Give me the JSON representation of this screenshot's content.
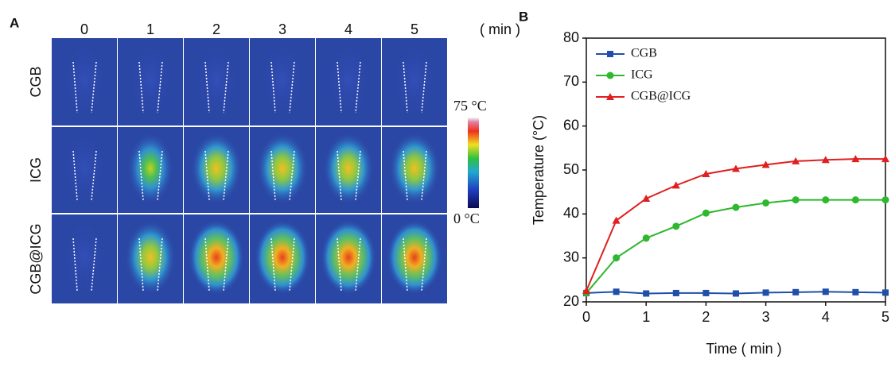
{
  "panel_a": {
    "label": "A",
    "columns": [
      "0",
      "1",
      "2",
      "3",
      "4",
      "5"
    ],
    "unit": "( min )",
    "rows": [
      "CGB",
      "ICG",
      "CGB@ICG"
    ],
    "colorbar": {
      "max": "75 °C",
      "min": "0 °C"
    }
  },
  "chart_data": {
    "type": "line",
    "panel_label": "B",
    "x_label": "Time ( min )",
    "y_label": "Temperature (°C)",
    "x": [
      0,
      0.5,
      1,
      1.5,
      2,
      2.5,
      3,
      3.5,
      4,
      4.5,
      5
    ],
    "series": [
      {
        "name": "CGB",
        "color": "#1f4fa8",
        "marker": "square",
        "values": [
          22,
          22.3,
          21.9,
          22,
          22,
          21.9,
          22.1,
          22.2,
          22.3,
          22.2,
          22.1
        ]
      },
      {
        "name": "ICG",
        "color": "#2db82d",
        "marker": "circle",
        "values": [
          22,
          30,
          34.5,
          37.2,
          40.2,
          41.5,
          42.5,
          43.2,
          43.2,
          43.2,
          43.2
        ]
      },
      {
        "name": "CGB@ICG",
        "color": "#e01f1f",
        "marker": "triangle",
        "values": [
          22.5,
          38.5,
          43.5,
          46.5,
          49.1,
          50.3,
          51.2,
          52,
          52.3,
          52.5,
          52.5
        ]
      }
    ],
    "xlim": [
      0,
      5
    ],
    "xticks": [
      0,
      1,
      2,
      3,
      4,
      5
    ],
    "ylim": [
      20,
      80
    ],
    "yticks": [
      20,
      30,
      40,
      50,
      60,
      70,
      80
    ],
    "legend": "upper-left"
  }
}
